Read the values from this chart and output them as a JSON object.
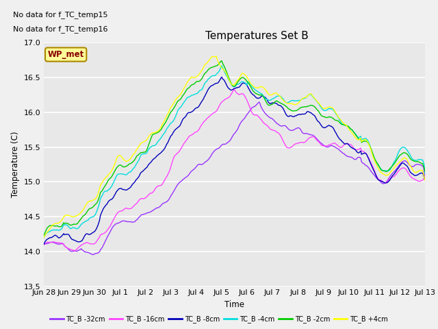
{
  "title": "Temperatures Set B",
  "xlabel": "Time",
  "ylabel": "Temperature (C)",
  "ylim": [
    13.5,
    17.0
  ],
  "no_data_text_1": "No data for f_TC_temp15",
  "no_data_text_2": "No data for f_TC_temp16",
  "wp_met_label": "WP_met",
  "x_tick_labels": [
    "Jun 28",
    "Jun 29",
    "Jun 30",
    "Jul 1",
    "Jul 2",
    "Jul 3",
    "Jul 4",
    "Jul 5",
    "Jul 6",
    "Jul 7",
    "Jul 8",
    "Jul 9",
    "Jul 10",
    "Jul 11",
    "Jul 12",
    "Jul 13"
  ],
  "series_colors": [
    "#9933FF",
    "#FF44FF",
    "#0000BB",
    "#00DDDD",
    "#00CC00",
    "#FFFF00"
  ],
  "series_labels": [
    "TC_B -32cm",
    "TC_B -16cm",
    "TC_B -8cm",
    "TC_B -4cm",
    "TC_B -2cm",
    "TC_B +4cm"
  ],
  "fig_bg_color": "#F0F0F0",
  "ax_bg_color": "#E8E8E8",
  "legend_box_face": "#FFFF99",
  "legend_box_edge": "#AA8800",
  "wp_met_text_color": "#880000",
  "linewidth": 1.0,
  "n_points": 500,
  "days": 15
}
